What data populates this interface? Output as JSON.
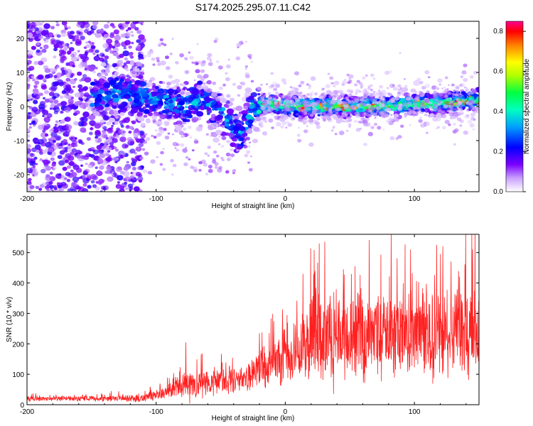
{
  "title": "S174.2025.295.07.11.C42",
  "chart_data": [
    {
      "type": "heatmap",
      "title": "S174.2025.295.07.11.C42",
      "xlabel": "Height of straight line (km)",
      "ylabel": "Frequency (Hz)",
      "xlim": [
        -200,
        150
      ],
      "ylim": [
        -25,
        25
      ],
      "xticks": [
        -200,
        -100,
        0,
        100
      ],
      "yticks": [
        -20,
        -10,
        0,
        10,
        20
      ],
      "colorbar": {
        "label": "Normalized spectral amplitude",
        "range": [
          0.0,
          0.85
        ],
        "ticks": [
          "0.0",
          "0.2",
          "0.4",
          "0.6",
          "0.8"
        ],
        "colormap": [
          "#ffffff",
          "#7a00ff",
          "#0000ff",
          "#00c8ff",
          "#00ff80",
          "#80ff00",
          "#ffff00",
          "#ff8000",
          "#ff0000",
          "#ff0080"
        ]
      },
      "ridge": {
        "description": "frequency centre of energy band vs height",
        "x": [
          -140,
          -120,
          -100,
          -80,
          -65,
          -55,
          -45,
          -35,
          -25,
          -15,
          0,
          25,
          50,
          75,
          100,
          125,
          150
        ],
        "y": [
          3,
          4,
          2,
          0,
          2,
          0,
          -4,
          -8,
          -1,
          1,
          0,
          0,
          0,
          0,
          1,
          1,
          2
        ]
      }
    },
    {
      "type": "line",
      "xlabel": "Height of straight line (km)",
      "ylabel": "SNR (10 * v/v)",
      "xlim": [
        -200,
        150
      ],
      "ylim": [
        0,
        560
      ],
      "xticks": [
        -200,
        -100,
        0,
        100
      ],
      "yticks": [
        0,
        100,
        200,
        300,
        400,
        500
      ],
      "color": "#ff2020",
      "envelope": {
        "x": [
          -200,
          -150,
          -110,
          -100,
          -90,
          -80,
          -75,
          -70,
          -50,
          -30,
          -20,
          -10,
          0,
          10,
          20,
          40,
          60,
          80,
          100,
          120,
          150
        ],
        "baseline": [
          20,
          20,
          22,
          30,
          45,
          60,
          80,
          70,
          80,
          95,
          110,
          140,
          150,
          180,
          220,
          230,
          230,
          230,
          235,
          235,
          230
        ],
        "spread": [
          10,
          12,
          18,
          25,
          35,
          45,
          90,
          60,
          60,
          65,
          90,
          110,
          120,
          150,
          180,
          200,
          200,
          210,
          210,
          210,
          200
        ],
        "peaks": [
          [
            -77,
            205
          ],
          [
            -20,
            235
          ],
          [
            23,
            440
          ],
          [
            45,
            445
          ],
          [
            82,
            560
          ],
          [
            97,
            510
          ],
          [
            122,
            520
          ],
          [
            145,
            510
          ]
        ]
      }
    }
  ]
}
